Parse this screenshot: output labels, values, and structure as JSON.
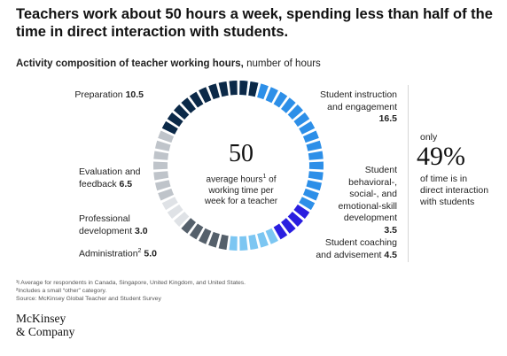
{
  "title": "Teachers work about 50 hours a week, spending less than half of the time in direct interaction with students.",
  "subtitle_bold": "Activity composition of teacher working hours,",
  "subtitle_rest": " number of hours",
  "center": {
    "value": "50",
    "line1": "average hours",
    "sup": "1",
    "line1b": " of",
    "line2": "working time per",
    "line3": "week for a teacher"
  },
  "callout": {
    "only": "only",
    "percent": "49%",
    "line1": "of time is in",
    "line2": "direct interaction",
    "line3": "with students"
  },
  "notes": [
    "¹l Average for respondents in Canada, Singapore, United Kingdom, and United States.",
    "²Includes a small “other” category.",
    "Source: McKinsey Global Teacher and Student Survey"
  ],
  "logo": {
    "line1": "McKinsey",
    "line2": "& Company"
  },
  "chart_data": {
    "type": "pie",
    "donut": true,
    "total": 50,
    "categories": [
      "Student instruction and engagement",
      "Student behavioral-, social-, and emotional-skill development",
      "Student coaching and advisement",
      "Administration",
      "Professional development",
      "Evaluation and feedback",
      "Preparation"
    ],
    "values": [
      16.5,
      3.5,
      4.5,
      5.0,
      3.0,
      6.5,
      10.5
    ],
    "colors": [
      "#2d8fe8",
      "#2a1ee0",
      "#7cc6f2",
      "#55606b",
      "#dfe2e6",
      "#bfc4ca",
      "#0b2948"
    ],
    "labels": {
      "instruction": {
        "text1": "Student instruction",
        "text2": "and engagement",
        "value": "16.5"
      },
      "behavioral": {
        "text1": "Student",
        "text2": "behavioral-,",
        "text3": "social-, and",
        "text4": "emotional-skill",
        "text5": "development",
        "value": "3.5"
      },
      "coaching": {
        "text1": "Student coaching",
        "text2": "and advisement",
        "value": "4.5"
      },
      "administration": {
        "text": "Administration",
        "sup": "2",
        "value": "5.0"
      },
      "professional": {
        "text1": "Professional",
        "text2": "development",
        "value": "3.0"
      },
      "evaluation": {
        "text1": "Evaluation and",
        "text2": "feedback",
        "value": "6.5"
      },
      "preparation": {
        "text": "Preparation",
        "value": "10.5"
      }
    }
  }
}
